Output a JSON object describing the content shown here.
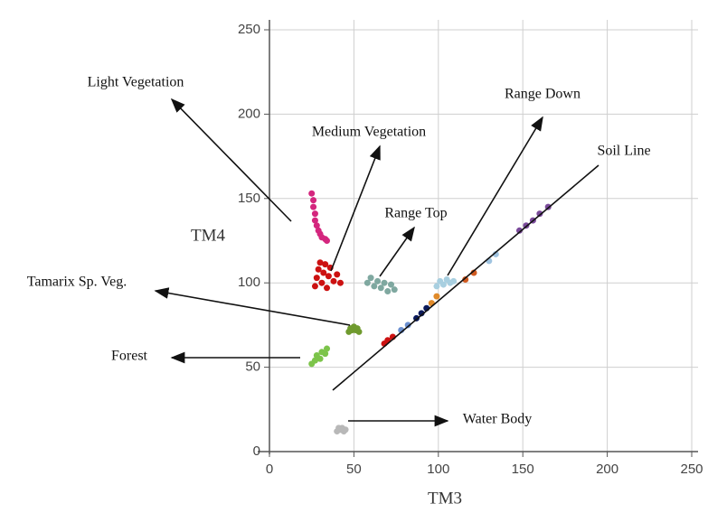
{
  "chart_data": {
    "type": "scatter",
    "x_label": "TM3",
    "y_label": "TM4",
    "xlim": [
      0,
      250
    ],
    "ylim": [
      0,
      250
    ],
    "xticks": [
      0,
      50,
      100,
      150,
      200,
      250
    ],
    "yticks": [
      0,
      50,
      100,
      150,
      200,
      250
    ],
    "grid": true,
    "series": [
      {
        "name": "Light Vegetation",
        "color": "#d4267e",
        "x": [
          25,
          26,
          26,
          27,
          27,
          28,
          29,
          30,
          31,
          33,
          34
        ],
        "values": [
          153,
          149,
          145,
          141,
          137,
          134,
          131,
          129,
          127,
          126,
          125
        ]
      },
      {
        "name": "Medium Vegetation",
        "color": "#cc1111",
        "x": [
          27,
          28,
          29,
          30,
          31,
          32,
          33,
          34,
          35,
          36,
          38,
          40,
          42
        ],
        "values": [
          98,
          103,
          108,
          112,
          100,
          106,
          111,
          97,
          104,
          109,
          101,
          105,
          100
        ]
      },
      {
        "name": "Range Top",
        "color": "#7fa8a0",
        "x": [
          58,
          60,
          62,
          64,
          66,
          68,
          70,
          72,
          74
        ],
        "values": [
          100,
          103,
          98,
          101,
          97,
          100,
          95,
          99,
          96
        ]
      },
      {
        "name": "Range Down",
        "color": "#a8cfe0",
        "x": [
          99,
          101,
          103,
          105,
          107,
          109
        ],
        "values": [
          98,
          101,
          99,
          102,
          100,
          101
        ]
      },
      {
        "name": "Tamarix Sp. Veg.",
        "color": "#6f9a2e",
        "x": [
          47,
          48,
          49,
          50,
          51,
          52,
          53
        ],
        "values": [
          71,
          73,
          72,
          74,
          72,
          73,
          71
        ]
      },
      {
        "name": "Forest",
        "color": "#7cc44a",
        "x": [
          25,
          27,
          28,
          30,
          31,
          33,
          34
        ],
        "values": [
          52,
          54,
          57,
          55,
          59,
          58,
          61
        ]
      },
      {
        "name": "Water Body",
        "color": "#b8b8b8",
        "x": [
          40,
          41,
          42,
          43,
          44,
          45
        ],
        "values": [
          12,
          14,
          13,
          14,
          12,
          13
        ]
      },
      {
        "name": "Soil Line",
        "colors": [
          "#cc1111",
          "#cc1111",
          "#cc1111",
          "#6a8fd0",
          "#6a8fd0",
          "#0b1a5c",
          "#0b1a5c",
          "#0b1a5c",
          "#e08a2a",
          "#e08a2a",
          "#d05a20",
          "#d05a20",
          "#9fc3e0",
          "#9fc3e0",
          "#7a4a9a",
          "#7a4a9a",
          "#7a4a9a",
          "#7a4a9a",
          "#7a4a9a"
        ],
        "x": [
          68,
          70,
          73,
          78,
          82,
          87,
          90,
          93,
          96,
          99,
          116,
          121,
          130,
          134,
          148,
          152,
          156,
          160,
          165
        ],
        "values": [
          64,
          66,
          68,
          72,
          75,
          79,
          82,
          85,
          88,
          92,
          102,
          106,
          113,
          117,
          131,
          134,
          137,
          141,
          145
        ]
      }
    ]
  }
}
